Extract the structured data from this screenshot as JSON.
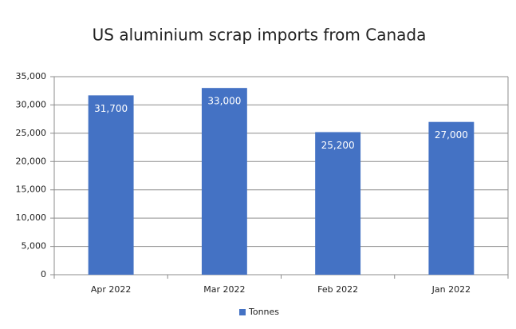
{
  "chart_data": {
    "type": "bar",
    "title": "US aluminium scrap imports from Canada",
    "categories": [
      "Apr 2022",
      "Mar 2022",
      "Feb 2022",
      "Jan 2022"
    ],
    "series": [
      {
        "name": "Tonnes",
        "color": "#4472c4",
        "values": [
          31700,
          33000,
          25200,
          27000
        ],
        "value_labels": [
          "31,700",
          "33,000",
          "25,200",
          "27,000"
        ]
      }
    ],
    "ylim": [
      0,
      35000
    ],
    "yticks": [
      0,
      {
        "value": 5000,
        "label": "5,000"
      },
      {
        "value": 10000,
        "label": "10,000"
      },
      {
        "value": 15000,
        "label": "15,000"
      },
      {
        "value": 20000,
        "label": "20,000"
      },
      {
        "value": 25000,
        "label": "25,000"
      },
      {
        "value": 30000,
        "label": "30,000"
      },
      {
        "value": 35000,
        "label": "35,000"
      }
    ],
    "grid": true,
    "legend": "bottom"
  }
}
